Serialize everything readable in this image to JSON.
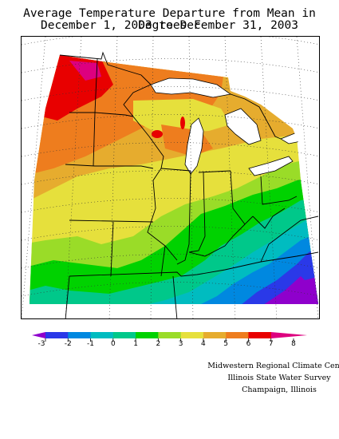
{
  "title": {
    "line1": "Average Temperature Departure from Mean in Degrees F",
    "line2": "December 1, 2003 to December 31, 2003"
  },
  "legend": {
    "ticks": [
      "-3",
      "-2",
      "-1",
      "0",
      "1",
      "2",
      "3",
      "4",
      "5",
      "6",
      "7",
      "8"
    ],
    "colors": [
      "#8f00cc",
      "#2a39e8",
      "#0088e0",
      "#00bcc0",
      "#00c88a",
      "#00d200",
      "#9adc28",
      "#e6e03c",
      "#e6ac2e",
      "#ee7d1e",
      "#e80000",
      "#dd007f"
    ]
  },
  "map": {
    "region": "Midwest United States",
    "colors": {
      "deep_red": "#e80000",
      "red_orange": "#ee7d1e",
      "orange": "#e6ac2e",
      "yellow": "#e6e03c",
      "yellow_green": "#9adc28",
      "green": "#00d200",
      "teal": "#00c88a",
      "cyan": "#00bcc0",
      "sky": "#0088e0",
      "blue": "#2a39e8",
      "purple": "#8f00cc",
      "magenta": "#dd007f"
    }
  },
  "credits": {
    "line1": "Midwestern Regional Climate Center",
    "line2": "Illinois State Water Survey",
    "line3": "Champaign, Illinois"
  }
}
